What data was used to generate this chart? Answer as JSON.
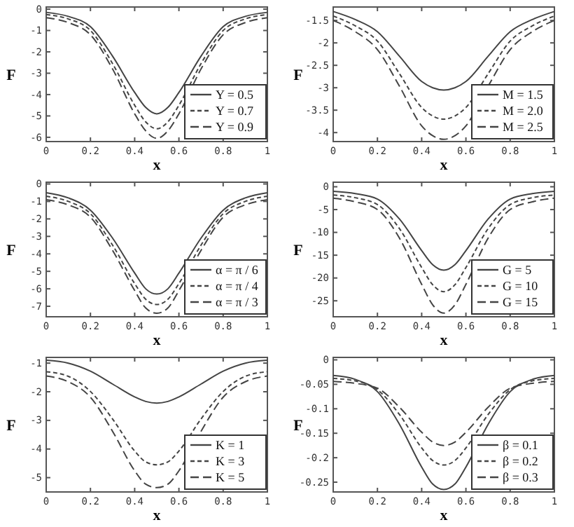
{
  "chart_data": [
    {
      "type": "line",
      "xlabel": "x",
      "ylabel": "F",
      "x": [
        0,
        0.1,
        0.2,
        0.3,
        0.4,
        0.45,
        0.5,
        0.55,
        0.6,
        0.7,
        0.8,
        0.9,
        1
      ],
      "xlim": [
        0,
        1
      ],
      "xticks": [
        0,
        0.2,
        0.4,
        0.6,
        0.8,
        1
      ],
      "ylim": [
        -6.2,
        0.1
      ],
      "yticks": [
        0,
        -1,
        -2,
        -3,
        -4,
        -5,
        -6
      ],
      "legend": "bottom right",
      "series": [
        {
          "name": "Υ = 0.5",
          "color": "#444444",
          "line_style": "solid",
          "values": [
            -0.15,
            -0.34,
            -0.82,
            -2.2,
            -3.9,
            -4.6,
            -4.9,
            -4.6,
            -3.9,
            -2.2,
            -0.82,
            -0.34,
            -0.15
          ]
        },
        {
          "name": "Υ = 0.7",
          "color": "#444444",
          "line_style": "dashed",
          "values": [
            -0.25,
            -0.46,
            -1.0,
            -2.55,
            -4.5,
            -5.28,
            -5.6,
            -5.28,
            -4.5,
            -2.55,
            -1.0,
            -0.46,
            -0.25
          ]
        },
        {
          "name": "Υ = 0.9",
          "color": "#444444",
          "line_style": "dashed",
          "values": [
            -0.4,
            -0.63,
            -1.2,
            -2.8,
            -4.9,
            -5.7,
            -6.05,
            -5.7,
            -4.9,
            -2.8,
            -1.2,
            -0.63,
            -0.4
          ]
        }
      ]
    },
    {
      "type": "line",
      "xlabel": "x",
      "ylabel": "F",
      "x": [
        0,
        0.1,
        0.2,
        0.3,
        0.4,
        0.45,
        0.5,
        0.55,
        0.6,
        0.7,
        0.8,
        0.9,
        1
      ],
      "xlim": [
        0,
        1
      ],
      "xticks": [
        0,
        0.2,
        0.4,
        0.6,
        0.8,
        1
      ],
      "ylim": [
        -4.2,
        -1.2
      ],
      "yticks": [
        -1.5,
        -2,
        -2.5,
        -3,
        -3.5,
        -4
      ],
      "legend": "bottom right",
      "series": [
        {
          "name": "M = 1.5",
          "color": "#444444",
          "line_style": "solid",
          "values": [
            -1.3,
            -1.48,
            -1.75,
            -2.3,
            -2.86,
            -3.0,
            -3.05,
            -3.0,
            -2.86,
            -2.3,
            -1.75,
            -1.48,
            -1.3
          ]
        },
        {
          "name": "M = 2.0",
          "color": "#444444",
          "line_style": "dashed",
          "values": [
            -1.4,
            -1.62,
            -1.96,
            -2.69,
            -3.44,
            -3.63,
            -3.7,
            -3.63,
            -3.44,
            -2.69,
            -1.96,
            -1.62,
            -1.4
          ]
        },
        {
          "name": "M = 2.5",
          "color": "#444444",
          "line_style": "dashed",
          "values": [
            -1.5,
            -1.75,
            -2.15,
            -2.97,
            -3.85,
            -4.07,
            -4.15,
            -4.07,
            -3.85,
            -2.97,
            -2.15,
            -1.75,
            -1.5
          ]
        }
      ]
    },
    {
      "type": "line",
      "xlabel": "x",
      "ylabel": "F",
      "x": [
        0,
        0.1,
        0.2,
        0.3,
        0.4,
        0.45,
        0.5,
        0.55,
        0.6,
        0.7,
        0.8,
        0.9,
        1
      ],
      "xlim": [
        0,
        1
      ],
      "xticks": [
        0,
        0.2,
        0.4,
        0.6,
        0.8,
        1
      ],
      "ylim": [
        -7.6,
        0.1
      ],
      "yticks": [
        0,
        -1,
        -2,
        -3,
        -4,
        -5,
        -6,
        -7
      ],
      "legend": "bottom right",
      "series": [
        {
          "name": "α = π / 6",
          "color": "#444444",
          "line_style": "solid",
          "values": [
            -0.5,
            -0.8,
            -1.5,
            -3.1,
            -5.1,
            -6,
            -6.3,
            -6,
            -5.1,
            -3.1,
            -1.5,
            -0.8,
            -0.5
          ]
        },
        {
          "name": "α = π / 4",
          "color": "#444444",
          "line_style": "dashed",
          "values": [
            -0.7,
            -1,
            -1.7,
            -3.5,
            -5.7,
            -6.6,
            -6.9,
            -6.6,
            -5.7,
            -3.5,
            -1.7,
            -1,
            -0.7
          ]
        },
        {
          "name": "α = π / 3",
          "color": "#444444",
          "line_style": "dashed",
          "values": [
            -0.9,
            -1.2,
            -1.9,
            -3.8,
            -6.1,
            -7.1,
            -7.4,
            -7.1,
            -6.1,
            -3.8,
            -1.9,
            -1.2,
            -0.9
          ]
        }
      ]
    },
    {
      "type": "line",
      "xlabel": "x",
      "ylabel": "F",
      "x": [
        0,
        0.1,
        0.2,
        0.3,
        0.4,
        0.45,
        0.5,
        0.55,
        0.6,
        0.7,
        0.8,
        0.9,
        1
      ],
      "xlim": [
        0,
        1
      ],
      "xticks": [
        0,
        0.2,
        0.4,
        0.6,
        0.8,
        1
      ],
      "ylim": [
        -28.5,
        1
      ],
      "yticks": [
        0,
        -5,
        -10,
        -15,
        -20,
        -25
      ],
      "legend": "bottom right",
      "series": [
        {
          "name": "G = 5",
          "color": "#444444",
          "line_style": "solid",
          "values": [
            -1,
            -1.5,
            -2.7,
            -7.1,
            -14,
            -17.1,
            -18.3,
            -17.1,
            -14,
            -7.1,
            -2.7,
            -1.5,
            -1
          ]
        },
        {
          "name": "G = 10",
          "color": "#444444",
          "line_style": "dashed",
          "values": [
            -1.8,
            -2.4,
            -3.9,
            -9.2,
            -17.7,
            -21.5,
            -23,
            -21.5,
            -17.7,
            -9.2,
            -3.9,
            -2.4,
            -1.8
          ]
        },
        {
          "name": "G = 15",
          "color": "#444444",
          "line_style": "dashed",
          "values": [
            -2.5,
            -3.3,
            -5,
            -11.3,
            -21.4,
            -25.9,
            -27.7,
            -25.9,
            -21.4,
            -11.3,
            -5,
            -3.3,
            -2.5
          ]
        }
      ]
    },
    {
      "type": "line",
      "xlabel": "x",
      "ylabel": "F",
      "x": [
        0,
        0.1,
        0.2,
        0.3,
        0.4,
        0.45,
        0.5,
        0.55,
        0.6,
        0.7,
        0.8,
        0.9,
        1
      ],
      "xlim": [
        0,
        1
      ],
      "xticks": [
        0,
        0.2,
        0.4,
        0.6,
        0.8,
        1
      ],
      "ylim": [
        -5.5,
        -0.8
      ],
      "yticks": [
        -1,
        -2,
        -3,
        -4,
        -5
      ],
      "legend": "bottom right",
      "series": [
        {
          "name": "K = 1",
          "color": "#444444",
          "line_style": "solid",
          "values": [
            -0.9,
            -1.0,
            -1.28,
            -1.73,
            -2.18,
            -2.34,
            -2.4,
            -2.34,
            -2.18,
            -1.73,
            -1.28,
            -1.0,
            -0.9
          ]
        },
        {
          "name": "K = 3",
          "color": "#444444",
          "line_style": "dashed",
          "values": [
            -1.3,
            -1.46,
            -1.99,
            -2.95,
            -4.07,
            -4.45,
            -4.55,
            -4.45,
            -4.07,
            -2.95,
            -1.99,
            -1.46,
            -1.3
          ]
        },
        {
          "name": "K = 5",
          "color": "#444444",
          "line_style": "dashed",
          "values": [
            -1.45,
            -1.65,
            -2.19,
            -3.38,
            -4.76,
            -5.23,
            -5.35,
            -5.23,
            -4.76,
            -3.38,
            -2.19,
            -1.65,
            -1.45
          ]
        }
      ]
    },
    {
      "type": "line",
      "xlabel": "x",
      "ylabel": "F",
      "x": [
        0,
        0.1,
        0.2,
        0.3,
        0.4,
        0.45,
        0.5,
        0.55,
        0.6,
        0.7,
        0.8,
        0.9,
        1
      ],
      "xlim": [
        0,
        1
      ],
      "xticks": [
        0,
        0.2,
        0.4,
        0.6,
        0.8,
        1
      ],
      "ylim": [
        -0.27,
        0.005
      ],
      "yticks": [
        0,
        -0.05,
        -0.1,
        -0.15,
        -0.2,
        -0.25
      ],
      "legend": "bottom right",
      "series": [
        {
          "name": "β = 0.1",
          "color": "#444444",
          "line_style": "solid",
          "values": [
            -0.032,
            -0.04,
            -0.065,
            -0.132,
            -0.219,
            -0.254,
            -0.265,
            -0.254,
            -0.219,
            -0.132,
            -0.065,
            -0.04,
            -0.032
          ]
        },
        {
          "name": "β = 0.2",
          "color": "#444444",
          "line_style": "dashed",
          "values": [
            -0.038,
            -0.043,
            -0.061,
            -0.112,
            -0.18,
            -0.206,
            -0.215,
            -0.206,
            -0.18,
            -0.112,
            -0.061,
            -0.043,
            -0.038
          ]
        },
        {
          "name": "β = 0.3",
          "color": "#444444",
          "line_style": "dashed",
          "values": [
            -0.044,
            -0.048,
            -0.058,
            -0.097,
            -0.148,
            -0.168,
            -0.175,
            -0.168,
            -0.148,
            -0.097,
            -0.058,
            -0.048,
            -0.044
          ]
        }
      ]
    }
  ]
}
